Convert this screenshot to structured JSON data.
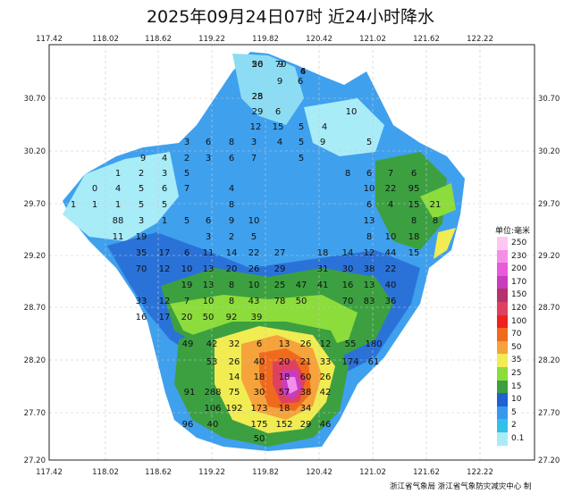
{
  "title": "2025年09月24日07时  近24小时降水",
  "axes": {
    "lon_ticks": [
      "117.42",
      "118.02",
      "118.62",
      "119.22",
      "119.82",
      "120.42",
      "121.02",
      "121.62",
      "122.22"
    ],
    "lat_ticks": [
      "30.70",
      "30.20",
      "29.70",
      "29.20",
      "28.70",
      "28.20",
      "27.70",
      "27.20"
    ]
  },
  "legend": {
    "title": "单位:毫米",
    "levels": [
      {
        "label": "250",
        "color": "#ffc8f4"
      },
      {
        "label": "230",
        "color": "#f58ee8"
      },
      {
        "label": "200",
        "color": "#e85ad8"
      },
      {
        "label": "170",
        "color": "#c83cc0"
      },
      {
        "label": "150",
        "color": "#b4326e"
      },
      {
        "label": "120",
        "color": "#e04060"
      },
      {
        "label": "100",
        "color": "#f02020"
      },
      {
        "label": "70",
        "color": "#f06a1e"
      },
      {
        "label": "50",
        "color": "#f5a33a"
      },
      {
        "label": "35",
        "color": "#f0ec52"
      },
      {
        "label": "25",
        "color": "#8cdc3c"
      },
      {
        "label": "15",
        "color": "#3ca040"
      },
      {
        "label": "10",
        "color": "#2060d0"
      },
      {
        "label": "5",
        "color": "#3898f0"
      },
      {
        "label": "2",
        "color": "#30c0e8"
      },
      {
        "label": "0.1",
        "color": "#a8ecf8"
      }
    ]
  },
  "station_values": [
    "20",
    "9",
    "4",
    "28",
    "9",
    "6",
    "29",
    "6",
    "10",
    "12",
    "15",
    "5",
    "4",
    "3",
    "6",
    "8",
    "3",
    "4",
    "5",
    "9",
    "5",
    "9",
    "4",
    "2",
    "3",
    "6",
    "7",
    "5",
    "1",
    "2",
    "3",
    "5",
    "8",
    "6",
    "7",
    "6",
    "6",
    "0",
    "4",
    "5",
    "7",
    "4",
    "10",
    "22",
    "95",
    "1",
    "1",
    "1",
    "5",
    "5",
    "8",
    "6",
    "4",
    "15",
    "21",
    "88",
    "3",
    "1",
    "5",
    "6",
    "9",
    "10",
    "13",
    "8",
    "8",
    "11",
    "19",
    "3",
    "2",
    "5",
    "8",
    "10",
    "18",
    "35",
    "17",
    "6",
    "11",
    "14",
    "22",
    "27",
    "18",
    "14",
    "12",
    "44",
    "15",
    "70",
    "12",
    "10",
    "13",
    "20",
    "26",
    "29",
    "31",
    "30",
    "38",
    "22",
    "19",
    "13",
    "8",
    "10",
    "25",
    "47",
    "41",
    "16",
    "13",
    "40",
    "33",
    "12",
    "7",
    "10",
    "8",
    "43",
    "78",
    "50",
    "70",
    "83",
    "36",
    "16",
    "17",
    "20",
    "50",
    "92",
    "39",
    "49",
    "42",
    "32",
    "6",
    "13",
    "26",
    "12",
    "55",
    "180",
    "53",
    "26",
    "40",
    "20",
    "21",
    "33",
    "174",
    "61",
    "14",
    "18",
    "18",
    "60",
    "26",
    "91",
    "288",
    "75",
    "30",
    "57",
    "38",
    "42",
    "106",
    "192",
    "173",
    "18",
    "34",
    "96",
    "40",
    "175",
    "152",
    "29",
    "46",
    "50",
    "56",
    "70",
    "6",
    "25"
  ],
  "credit": "浙江省气象局  浙江省气象防灾减灾中心 制"
}
